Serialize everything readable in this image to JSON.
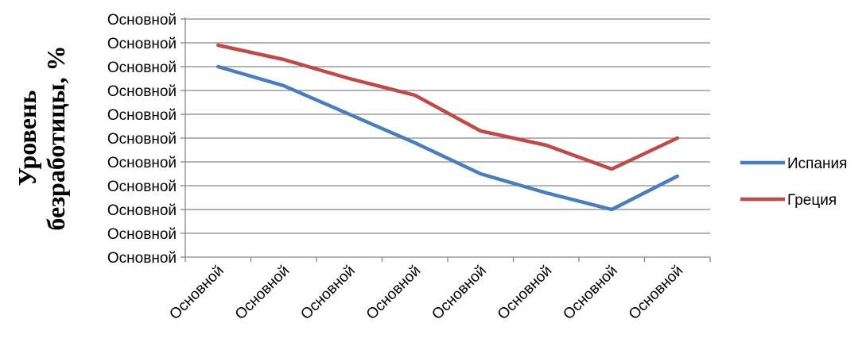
{
  "chart_data": {
    "type": "line",
    "title": "",
    "xlabel": "",
    "ylabel_lines": [
      "Уровень",
      "безработицы, %"
    ],
    "categories": [
      "Основной",
      "Основной",
      "Основной",
      "Основной",
      "Основной",
      "Основной",
      "Основной",
      "Основной"
    ],
    "y_tick_labels": [
      "Основной",
      "Основной",
      "Основной",
      "Основной",
      "Основной",
      "Основной",
      "Основной",
      "Основной",
      "Основной",
      "Основной",
      "Основной"
    ],
    "ylim": [
      0,
      10
    ],
    "grid": true,
    "legend_position": "right",
    "series": [
      {
        "name": "Испания",
        "color": "#4a7ebb",
        "values": [
          8.0,
          7.2,
          6.0,
          4.8,
          3.5,
          2.7,
          2.0,
          3.4
        ]
      },
      {
        "name": "Греция",
        "color": "#be4b48",
        "values": [
          8.9,
          8.3,
          7.5,
          6.8,
          5.3,
          4.7,
          3.7,
          5.0
        ]
      }
    ]
  }
}
